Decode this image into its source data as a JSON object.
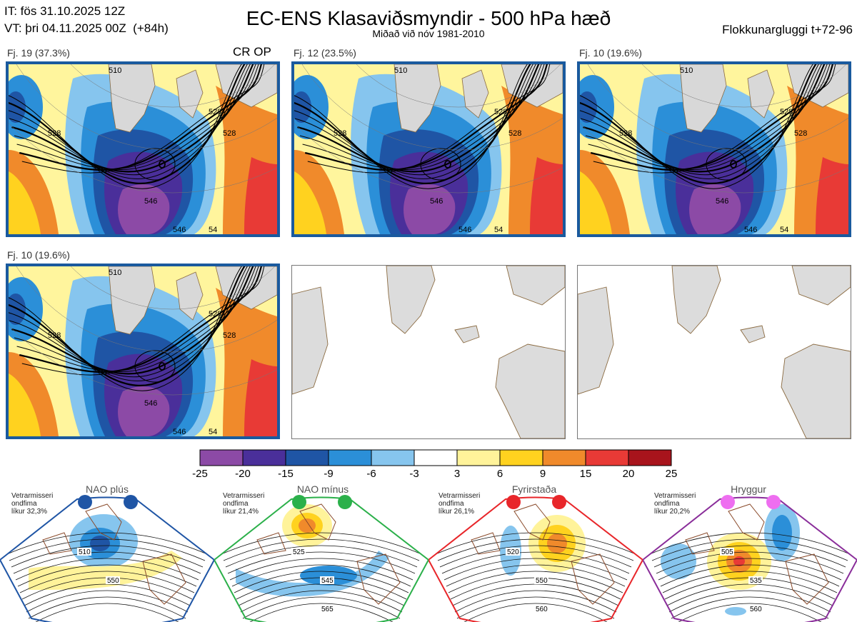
{
  "header": {
    "it_line": "IT: fös 31.10.2025 12Z",
    "vt_line": "VT: þri 04.11.2025 00Z  (+84h)",
    "title": "EC-ENS Klasaviðsmyndir - 500 hPa hæð",
    "subtitle": "Miðað við nóv 1981-2010",
    "window": "Flokkunargluggi t+72-96"
  },
  "panels": [
    {
      "label": "Fj. 19 (37.3%)",
      "tag": "CR OP",
      "filled": true
    },
    {
      "label": "Fj. 12 (23.5%)",
      "tag": "",
      "filled": true
    },
    {
      "label": "Fj. 10 (19.6%)",
      "tag": "",
      "filled": true
    },
    {
      "label": "Fj. 10 (19.6%)",
      "tag": "",
      "filled": true
    },
    {
      "label": "",
      "tag": "",
      "filled": false
    },
    {
      "label": "",
      "tag": "",
      "filled": false
    }
  ],
  "contour_labels": [
    "510",
    "528",
    "528",
    "546",
    "528",
    "546",
    "54",
    "54"
  ],
  "colorbar": {
    "ticks": [
      "-25",
      "-20",
      "-15",
      "-9",
      "-6",
      "-3",
      "3",
      "6",
      "9",
      "15",
      "20",
      "25"
    ],
    "colors": [
      "#8c4aa6",
      "#4a2f9a",
      "#1f55a5",
      "#2b8fd8",
      "#86c5ee",
      "#ffffff",
      "#fff39a",
      "#ffd21f",
      "#f08a2b",
      "#e83a36",
      "#a8141c"
    ]
  },
  "regimes": [
    {
      "name": "NAO plús",
      "info": "Vetrarmisseri\nondfima\nlíkur 32,3%",
      "dot_color": "#1f55a5",
      "frame_color": "#1f55a5",
      "contours": [
        "510",
        "550"
      ]
    },
    {
      "name": "NAO mínus",
      "info": "Vetrarmisseri\nondfima\nlíkur 21,4%",
      "dot_color": "#2bb04a",
      "frame_color": "#2bb04a",
      "contours": [
        "525",
        "545",
        "565"
      ]
    },
    {
      "name": "Fyrirstaða",
      "info": "Vetrarmisseri\nondfima\nlíkur 26,1%",
      "dot_color": "#e8262a",
      "frame_color": "#e8262a",
      "contours": [
        "520",
        "550",
        "560"
      ]
    },
    {
      "name": "Hryggur",
      "info": "Vetrarmisseri\nondfima\nlíkur 20,2%",
      "dot_color": "#ee6ef0",
      "frame_color": "#8a2e9a",
      "contours": [
        "505",
        "535",
        "560"
      ]
    }
  ]
}
